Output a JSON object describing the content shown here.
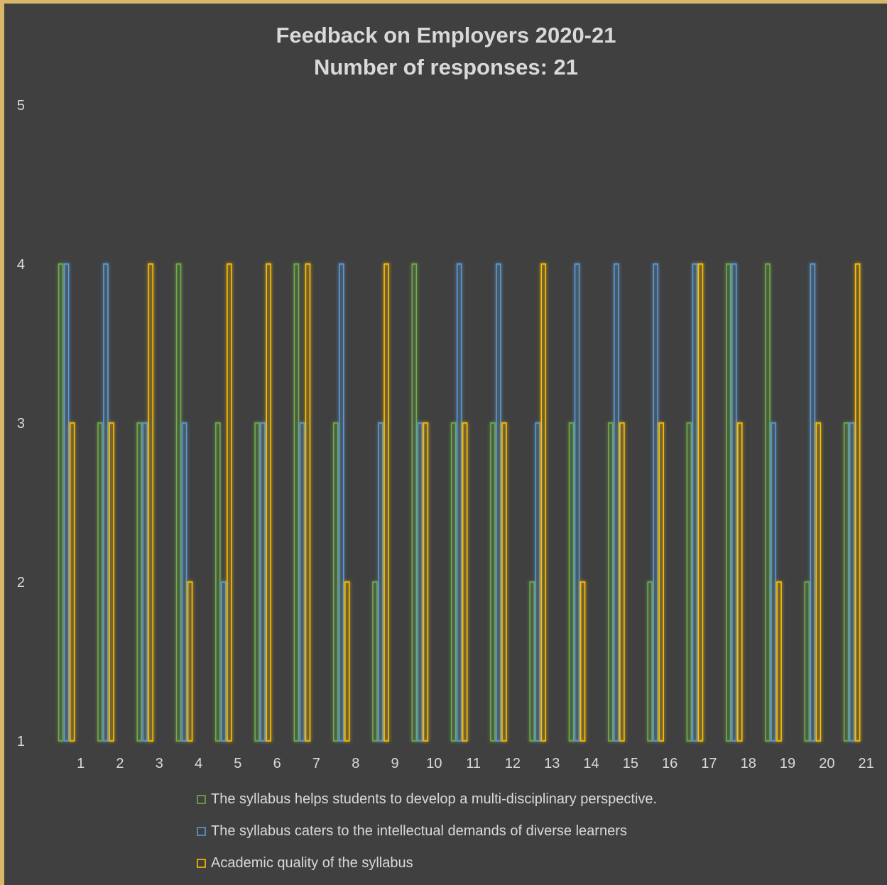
{
  "chart_data": {
    "type": "bar",
    "title": "Feedback on Employers 2020-21",
    "subtitle": "Number of responses: 21",
    "ylim": [
      1,
      5
    ],
    "yticks": [
      "1",
      "2",
      "3",
      "4",
      "5"
    ],
    "grid": false,
    "legend_position": "bottom",
    "categories": [
      "1",
      "2",
      "3",
      "4",
      "5",
      "6",
      "7",
      "8",
      "9",
      "10",
      "11",
      "12",
      "13",
      "14",
      "15",
      "16",
      "17",
      "18",
      "19",
      "20",
      "21"
    ],
    "series": [
      {
        "name": "The syllabus helps students to develop a multi-disciplinary perspective.",
        "color": "#70ad47",
        "values": [
          4,
          3,
          3,
          4,
          3,
          3,
          4,
          3,
          2,
          4,
          3,
          3,
          2,
          3,
          3,
          2,
          3,
          4,
          4,
          2,
          3
        ]
      },
      {
        "name": "The syllabus caters to the intellectual demands of diverse learners",
        "color": "#5b9bd5",
        "values": [
          4,
          4,
          3,
          3,
          2,
          3,
          3,
          4,
          3,
          3,
          4,
          4,
          3,
          4,
          4,
          4,
          4,
          4,
          3,
          4,
          3
        ]
      },
      {
        "name": "Academic quality of the syllabus",
        "color": "#ffc000",
        "values": [
          3,
          3,
          4,
          2,
          4,
          4,
          4,
          2,
          4,
          3,
          3,
          3,
          4,
          2,
          3,
          3,
          4,
          3,
          2,
          3,
          4
        ]
      }
    ]
  }
}
